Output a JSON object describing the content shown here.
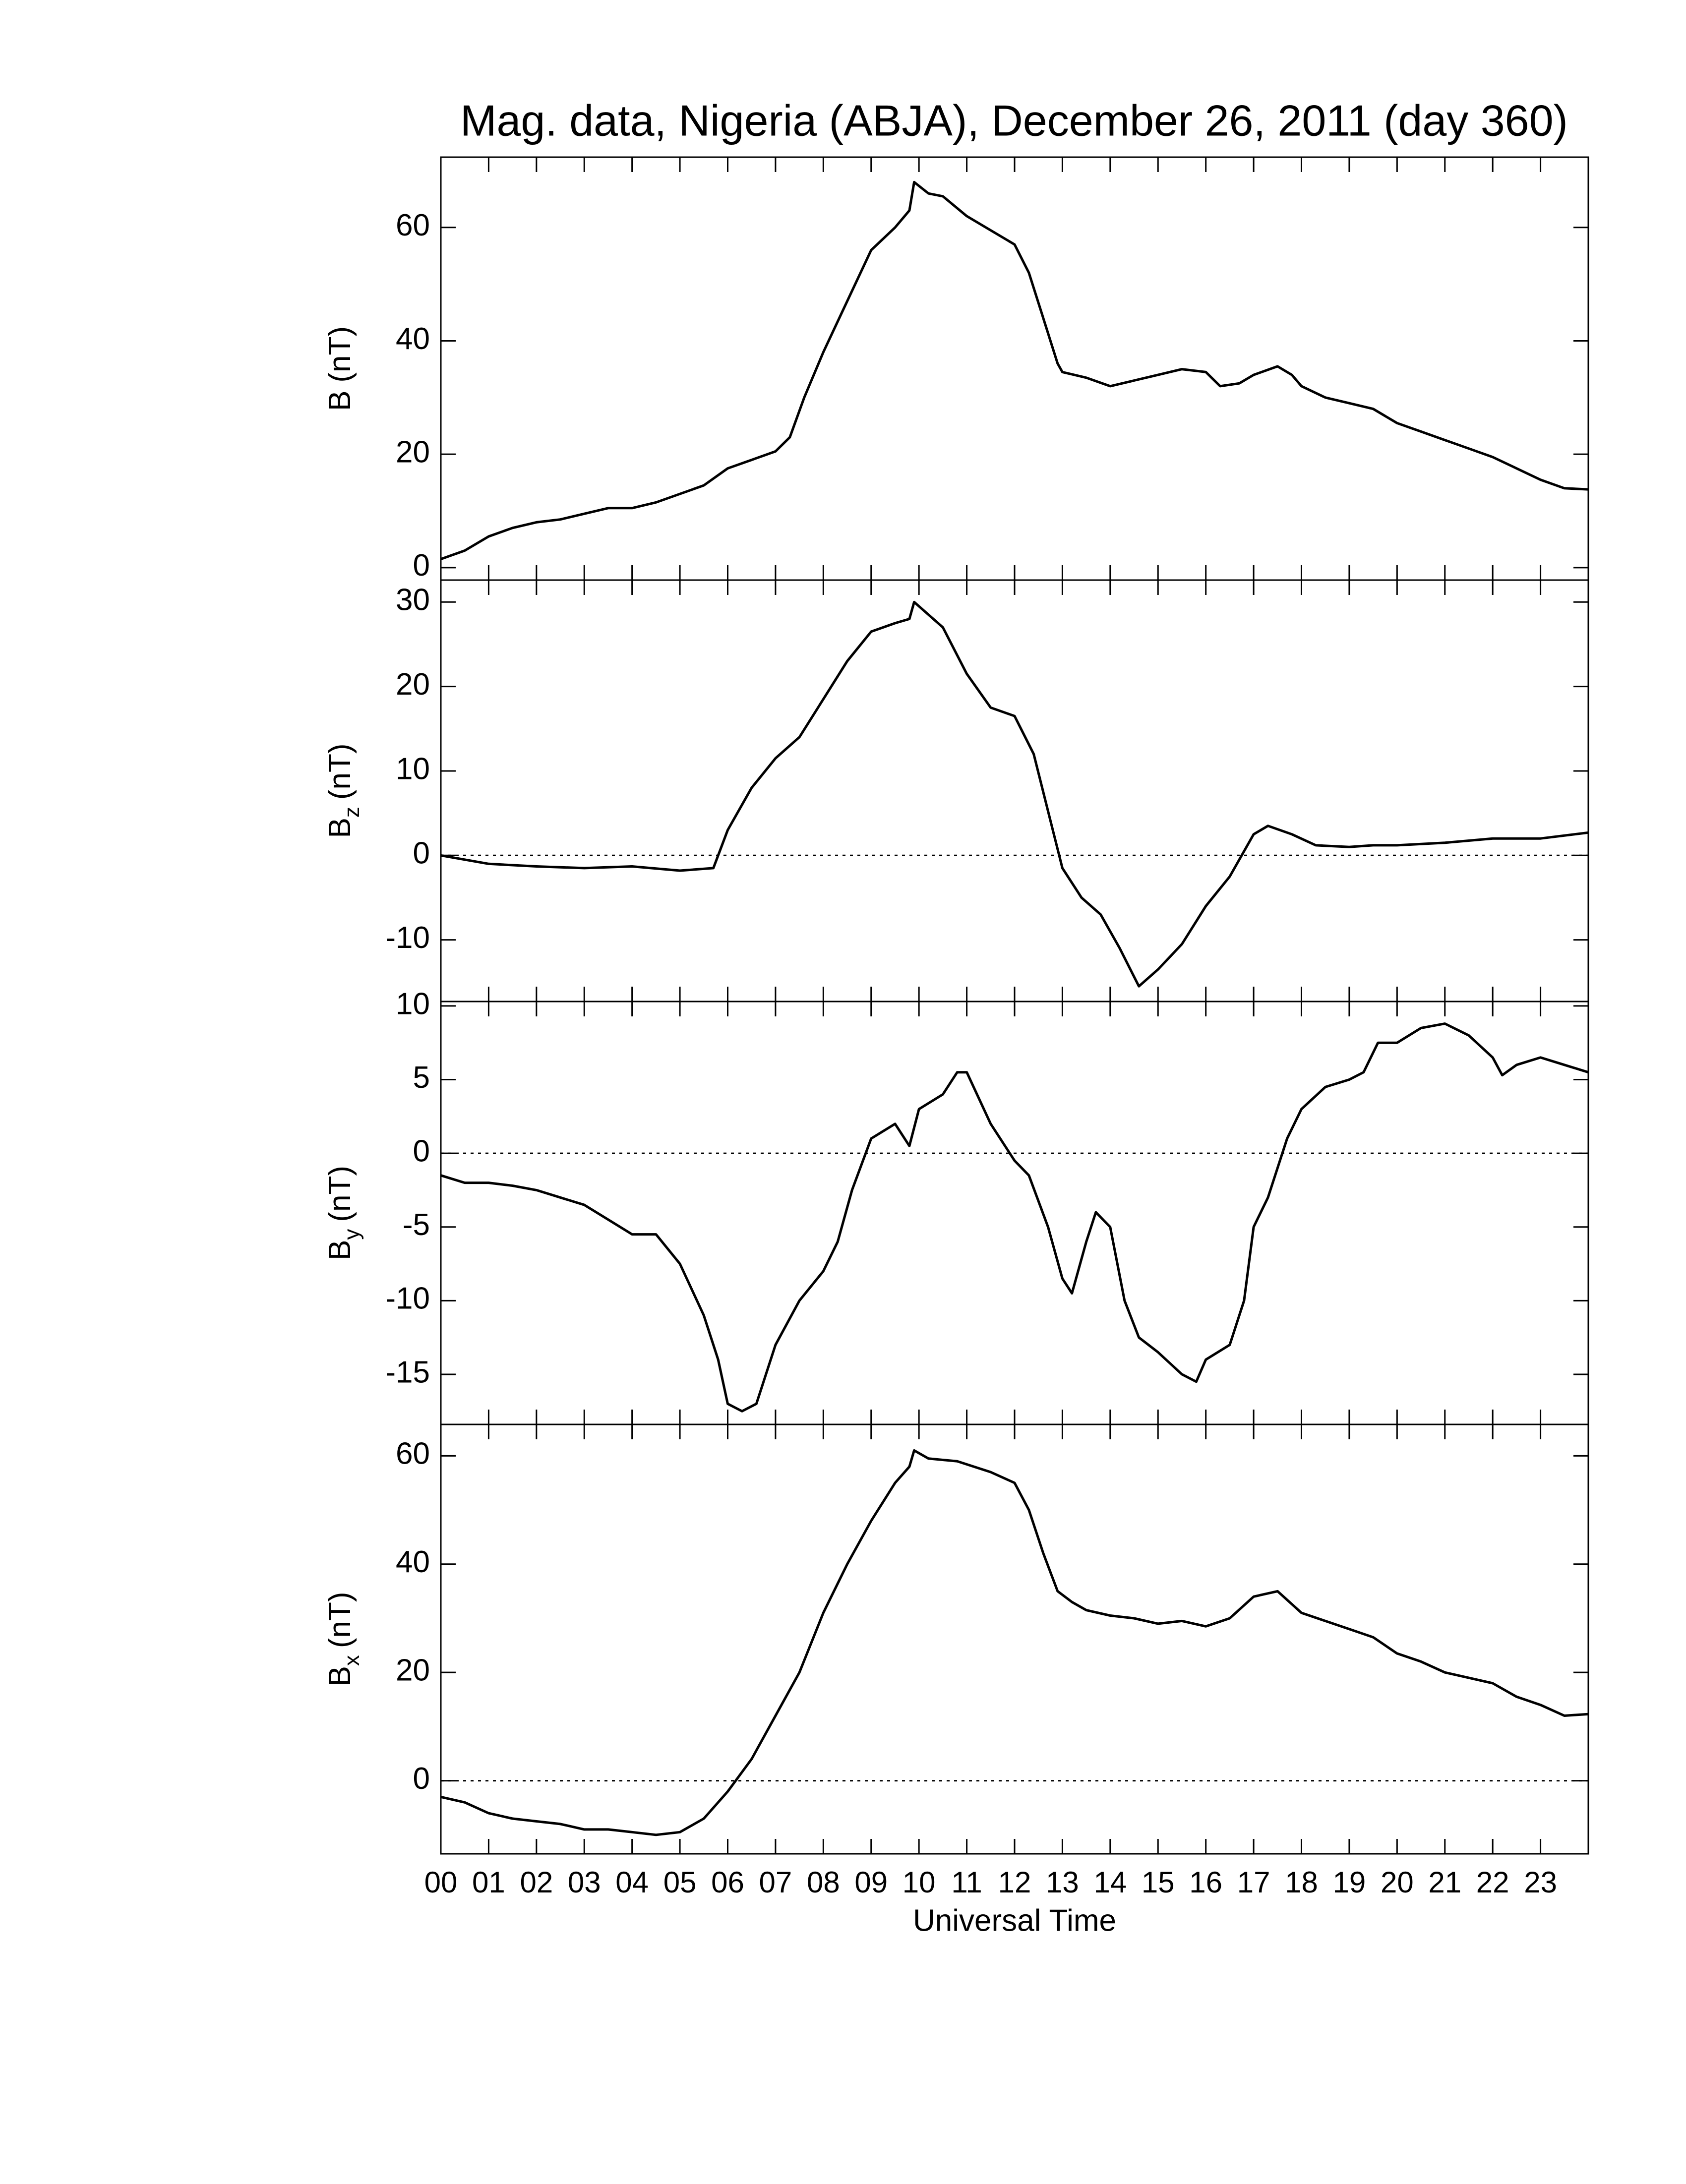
{
  "title": "Mag. data, Nigeria (ABJA), December 26, 2011 (day 360)",
  "xlabel": "Universal Time",
  "xlim": [
    0,
    24
  ],
  "xticks": [
    {
      "value": 0,
      "label": "00"
    },
    {
      "value": 1,
      "label": "01"
    },
    {
      "value": 2,
      "label": "02"
    },
    {
      "value": 3,
      "label": "03"
    },
    {
      "value": 4,
      "label": "04"
    },
    {
      "value": 5,
      "label": "05"
    },
    {
      "value": 6,
      "label": "06"
    },
    {
      "value": 7,
      "label": "07"
    },
    {
      "value": 8,
      "label": "08"
    },
    {
      "value": 9,
      "label": "09"
    },
    {
      "value": 10,
      "label": "10"
    },
    {
      "value": 11,
      "label": "11"
    },
    {
      "value": 12,
      "label": "12"
    },
    {
      "value": 13,
      "label": "13"
    },
    {
      "value": 14,
      "label": "14"
    },
    {
      "value": 15,
      "label": "15"
    },
    {
      "value": 16,
      "label": "16"
    },
    {
      "value": 17,
      "label": "17"
    },
    {
      "value": 18,
      "label": "18"
    },
    {
      "value": 19,
      "label": "19"
    },
    {
      "value": 20,
      "label": "20"
    },
    {
      "value": 21,
      "label": "21"
    },
    {
      "value": 22,
      "label": "22"
    },
    {
      "value": 23,
      "label": "23"
    }
  ],
  "chart_data": [
    {
      "type": "line",
      "ylabel": "B",
      "unit": "(nT)",
      "color": "#000000",
      "zero_line": false,
      "ylim": [
        -2.2,
        72.4
      ],
      "yticks": [
        0,
        20,
        40,
        60
      ],
      "x": [
        0,
        0.5,
        1,
        1.5,
        2,
        2.5,
        3,
        3.5,
        4,
        4.5,
        5,
        5.5,
        6,
        6.5,
        7,
        7.3,
        7.6,
        8,
        8.5,
        9,
        9.5,
        9.8,
        9.9,
        10.2,
        10.5,
        11,
        11.5,
        12,
        12.3,
        12.6,
        12.9,
        13,
        13.5,
        14,
        14.5,
        15,
        15.5,
        16,
        16.3,
        16.7,
        17,
        17.5,
        17.8,
        18,
        18.5,
        19,
        19.5,
        20,
        20.5,
        21,
        21.5,
        22,
        22.5,
        23,
        23.5,
        24
      ],
      "values": [
        1.5,
        3,
        5.5,
        7,
        8,
        8.5,
        9.5,
        10.5,
        10.5,
        11.5,
        13,
        14.5,
        17.5,
        19,
        20.5,
        23,
        30,
        38,
        47,
        56,
        60,
        63,
        68,
        66,
        65.5,
        62,
        59.5,
        57,
        52,
        44,
        36,
        34.5,
        33.5,
        32,
        33,
        34,
        35,
        34.5,
        32,
        32.5,
        34,
        35.5,
        34,
        32,
        30,
        29,
        28,
        25.5,
        24,
        22.5,
        21,
        19.5,
        17.5,
        15.5,
        14,
        13.8
      ]
    },
    {
      "type": "line",
      "ylabel": "B",
      "subscript": "z",
      "unit": "(nT)",
      "color": "#000000",
      "zero_line": true,
      "ylim": [
        -17.3,
        32.6
      ],
      "yticks": [
        -10,
        0,
        10,
        20,
        30
      ],
      "x": [
        0,
        1,
        2,
        3,
        4,
        5,
        5.7,
        6,
        6.5,
        7,
        7.5,
        8,
        8.5,
        9,
        9.5,
        9.8,
        9.9,
        10.5,
        11,
        11.5,
        12,
        12.4,
        12.8,
        13,
        13.4,
        13.8,
        14.2,
        14.6,
        15,
        15.5,
        16,
        16.5,
        17,
        17.3,
        17.8,
        18.3,
        19,
        19.5,
        20,
        21,
        22,
        23,
        24
      ],
      "values": [
        0,
        -1,
        -1.3,
        -1.5,
        -1.3,
        -1.8,
        -1.5,
        3,
        8,
        11.5,
        14,
        18.5,
        23,
        26.5,
        27.5,
        28,
        30,
        27,
        21.5,
        17.5,
        16.5,
        12,
        3,
        -1.5,
        -5,
        -7,
        -11,
        -15.5,
        -13.5,
        -10.5,
        -6,
        -2.5,
        2.5,
        3.5,
        2.5,
        1.2,
        1,
        1.2,
        1.2,
        1.5,
        2,
        2,
        2.7
      ]
    },
    {
      "type": "line",
      "ylabel": "B",
      "subscript": "y",
      "unit": "(nT)",
      "color": "#000000",
      "zero_line": true,
      "ylim": [
        -18.4,
        10.3
      ],
      "yticks": [
        -15,
        -10,
        -5,
        0,
        5,
        10
      ],
      "x": [
        0,
        0.5,
        1,
        1.5,
        2,
        2.5,
        3,
        3.5,
        4,
        4.5,
        5,
        5.5,
        5.8,
        6,
        6.3,
        6.6,
        7,
        7.5,
        8,
        8.3,
        8.6,
        9,
        9.5,
        9.8,
        10,
        10.5,
        10.8,
        11,
        11.5,
        12,
        12.3,
        12.7,
        13,
        13.2,
        13.5,
        13.7,
        14,
        14.3,
        14.6,
        15,
        15.5,
        15.8,
        16,
        16.5,
        16.8,
        17,
        17.3,
        17.7,
        18,
        18.5,
        19,
        19.3,
        19.6,
        20,
        20.5,
        21,
        21.5,
        22,
        22.2,
        22.5,
        23,
        23.5,
        24
      ],
      "values": [
        -1.5,
        -2,
        -2,
        -2.2,
        -2.5,
        -3,
        -3.5,
        -4.5,
        -5.5,
        -5.5,
        -7.5,
        -11,
        -14,
        -17,
        -17.5,
        -17,
        -13,
        -10,
        -8,
        -6,
        -2.5,
        1,
        2,
        0.5,
        3,
        4,
        5.5,
        5.5,
        2,
        -0.5,
        -1.5,
        -5,
        -8.5,
        -9.5,
        -6,
        -4,
        -5,
        -10,
        -12.5,
        -13.5,
        -15,
        -15.5,
        -14,
        -13,
        -10,
        -5,
        -3,
        1,
        3,
        4.5,
        5,
        5.5,
        7.5,
        7.5,
        8.5,
        8.8,
        8,
        6.5,
        5.3,
        6,
        6.5,
        6,
        5.5
      ]
    },
    {
      "type": "line",
      "ylabel": "B",
      "subscript": "x",
      "unit": "(nT)",
      "color": "#000000",
      "zero_line": true,
      "ylim": [
        -13.5,
        65.8
      ],
      "yticks": [
        0,
        20,
        40,
        60
      ],
      "x": [
        0,
        0.5,
        1,
        1.5,
        2,
        2.5,
        3,
        3.5,
        4,
        4.5,
        5,
        5.5,
        6,
        6.5,
        7,
        7.5,
        8,
        8.5,
        9,
        9.5,
        9.8,
        9.9,
        10.2,
        10.8,
        11.5,
        12,
        12.3,
        12.6,
        12.9,
        13.2,
        13.5,
        14,
        14.5,
        15,
        15.5,
        16,
        16.5,
        17,
        17.5,
        18,
        18.5,
        19,
        19.5,
        20,
        20.5,
        21,
        21.5,
        22,
        22.5,
        23,
        23.5,
        24
      ],
      "values": [
        -3,
        -4,
        -6,
        -7,
        -7.5,
        -8,
        -9,
        -9,
        -9.5,
        -10,
        -9.5,
        -7,
        -2,
        4,
        12,
        20,
        31,
        40,
        48,
        55,
        58,
        61,
        59.5,
        59,
        57,
        55,
        50,
        42,
        35,
        33,
        31.5,
        30.5,
        30,
        29,
        29.5,
        28.5,
        30,
        34,
        35,
        31,
        29.5,
        28,
        26.5,
        23.5,
        22,
        20,
        19,
        18,
        15.5,
        14,
        12,
        12.3
      ]
    }
  ]
}
